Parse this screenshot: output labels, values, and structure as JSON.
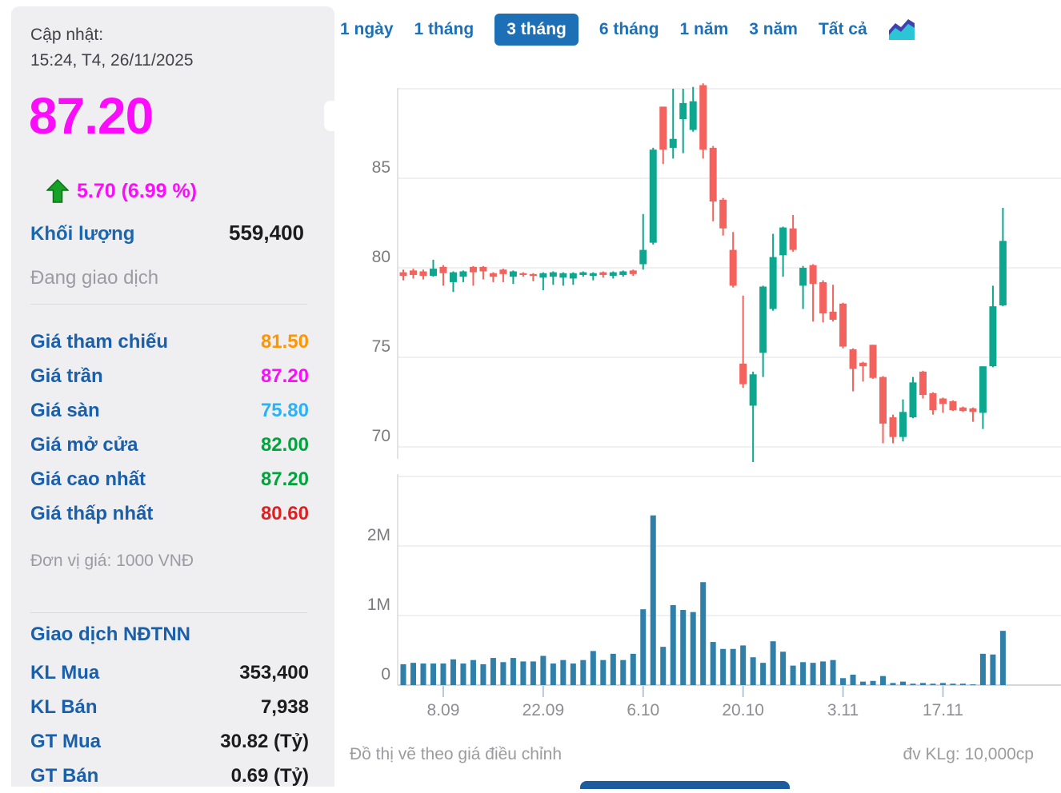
{
  "sidebar": {
    "updated_label": "Cập nhật:",
    "updated_value": "15:24, T4, 26/11/2025",
    "price": "87.20",
    "price_color": "#fb0dfb",
    "change": "5.70 (6.99 %)",
    "change_color": "#fb0dfb",
    "up_arrow_color": "#15a226",
    "volume_label": "Khối lượng",
    "volume_value": "559,400",
    "status": "Đang giao dịch",
    "price_rows": [
      {
        "label": "Giá tham chiếu",
        "value": "81.50",
        "color": "#ff9500"
      },
      {
        "label": "Giá trần",
        "value": "87.20",
        "color": "#fb0dfb"
      },
      {
        "label": "Giá sàn",
        "value": "75.80",
        "color": "#2bb1f8"
      },
      {
        "label": "Giá mở cửa",
        "value": "82.00",
        "color": "#00a43c"
      },
      {
        "label": "Giá cao nhất",
        "value": "87.20",
        "color": "#00a43c"
      },
      {
        "label": "Giá thấp nhất",
        "value": "80.60",
        "color": "#e02020"
      }
    ],
    "unit_note": "Đơn vị giá: 1000 VNĐ",
    "foreign": {
      "title": "Giao dịch NĐTNN",
      "rows": [
        {
          "label": "KL Mua",
          "value": "353,400"
        },
        {
          "label": "KL Bán",
          "value": "7,938"
        },
        {
          "label": "GT Mua",
          "value": "30.82 (Tỷ)"
        },
        {
          "label": "GT Bán",
          "value": "0.69 (Tỷ)"
        }
      ]
    }
  },
  "tabs": {
    "items": [
      "1 ngày",
      "1 tháng",
      "3 tháng",
      "6 tháng",
      "1 năm",
      "3 năm",
      "Tất cả"
    ],
    "active_label": "3 tháng",
    "active_bg": "#1d70b5",
    "icon_colors": {
      "area": "#2cc5d6",
      "band": "#4040af"
    }
  },
  "footer": {
    "left_note": "Đồ thị vẽ theo giá điều chỉnh",
    "right_note": "đv KLg: 10,000cp"
  },
  "chart_data": [
    {
      "type": "candlestick",
      "title": "",
      "ylim": [
        69.0,
        90.4
      ],
      "yticks": [
        85,
        80,
        75,
        70
      ],
      "grid_values": [
        90,
        85,
        80,
        75,
        70
      ],
      "up_color": "#0ca78e",
      "down_color": "#f4625d",
      "grid_color": "#ececef",
      "axis_line_color": "#d7d7db",
      "axis_text_color": "#7a7a80",
      "x_tick_labels": [
        "8.09",
        "22.09",
        "6.10",
        "20.10",
        "3.11",
        "17.11"
      ],
      "x_tick_indices": [
        4,
        14,
        24,
        34,
        44,
        54
      ],
      "x_tick_color": "#b6c7dd",
      "x_text_color": "#8e8e93",
      "candles_ohlc": [
        [
          79.75,
          79.9,
          79.3,
          79.55
        ],
        [
          79.85,
          79.95,
          79.4,
          79.6
        ],
        [
          79.8,
          79.9,
          79.35,
          79.55
        ],
        [
          79.55,
          80.45,
          79.5,
          79.95
        ],
        [
          80.05,
          80.15,
          79.0,
          79.7
        ],
        [
          79.2,
          79.8,
          78.65,
          79.75
        ],
        [
          79.5,
          79.85,
          79.2,
          79.8
        ],
        [
          80.05,
          80.1,
          79.0,
          79.75
        ],
        [
          80.05,
          80.1,
          79.35,
          79.8
        ],
        [
          79.7,
          79.75,
          79.2,
          79.5
        ],
        [
          79.9,
          79.95,
          79.2,
          79.65
        ],
        [
          79.5,
          79.85,
          79.1,
          79.8
        ],
        [
          79.7,
          79.75,
          79.5,
          79.6
        ],
        [
          79.65,
          79.7,
          79.25,
          79.55
        ],
        [
          79.45,
          79.75,
          78.75,
          79.7
        ],
        [
          79.5,
          79.8,
          79.05,
          79.75
        ],
        [
          79.45,
          79.75,
          79.0,
          79.7
        ],
        [
          79.4,
          79.75,
          79.05,
          79.7
        ],
        [
          79.6,
          79.8,
          79.5,
          79.75
        ],
        [
          79.55,
          79.75,
          79.3,
          79.7
        ],
        [
          79.75,
          79.8,
          79.45,
          79.6
        ],
        [
          79.55,
          79.8,
          79.4,
          79.75
        ],
        [
          79.6,
          79.85,
          79.5,
          79.8
        ],
        [
          79.85,
          79.9,
          79.55,
          79.65
        ],
        [
          80.2,
          83.0,
          79.9,
          81.0
        ],
        [
          81.4,
          86.7,
          81.3,
          86.6
        ],
        [
          89.0,
          89.0,
          85.8,
          86.6
        ],
        [
          86.7,
          90.0,
          86.1,
          87.2
        ],
        [
          88.3,
          90.0,
          86.4,
          89.2
        ],
        [
          87.7,
          90.1,
          87.6,
          89.3
        ],
        [
          90.2,
          90.3,
          86.1,
          86.6
        ],
        [
          86.7,
          86.8,
          82.6,
          83.7
        ],
        [
          83.8,
          83.9,
          81.8,
          82.2
        ],
        [
          81.0,
          82.0,
          78.9,
          79.0
        ],
        [
          74.65,
          78.45,
          73.3,
          73.5
        ],
        [
          72.3,
          74.2,
          69.15,
          74.05
        ],
        [
          75.25,
          79.0,
          73.9,
          78.95
        ],
        [
          77.7,
          81.9,
          77.6,
          80.6
        ],
        [
          80.7,
          82.3,
          79.5,
          82.25
        ],
        [
          82.2,
          82.95,
          80.9,
          81.0
        ],
        [
          79.0,
          80.1,
          77.7,
          80.0
        ],
        [
          80.15,
          80.2,
          77.0,
          79.1
        ],
        [
          79.2,
          79.3,
          76.95,
          77.45
        ],
        [
          77.55,
          79.05,
          77.0,
          77.1
        ],
        [
          78.0,
          78.05,
          75.5,
          75.6
        ],
        [
          75.45,
          75.5,
          73.1,
          74.35
        ],
        [
          74.7,
          74.75,
          73.65,
          74.5
        ],
        [
          75.7,
          75.7,
          73.8,
          73.85
        ],
        [
          73.9,
          73.95,
          70.2,
          71.3
        ],
        [
          71.65,
          71.8,
          70.2,
          70.55
        ],
        [
          70.55,
          72.65,
          70.3,
          71.95
        ],
        [
          71.65,
          73.9,
          71.6,
          73.6
        ],
        [
          74.2,
          74.25,
          72.7,
          72.9
        ],
        [
          73.0,
          73.05,
          71.8,
          72.05
        ],
        [
          72.7,
          72.75,
          71.9,
          72.4
        ],
        [
          72.55,
          72.6,
          72.0,
          72.05
        ],
        [
          72.2,
          72.25,
          71.95,
          72.0
        ],
        [
          72.15,
          72.2,
          71.4,
          71.95
        ],
        [
          71.9,
          74.5,
          71.0,
          74.5
        ],
        [
          74.5,
          79.0,
          74.45,
          77.85
        ],
        [
          77.9,
          83.35,
          77.85,
          81.5
        ]
      ]
    },
    {
      "type": "bar",
      "name": "volume",
      "ylim": [
        0,
        3.0
      ],
      "ytick_labels": [
        "2M",
        "1M",
        "0"
      ],
      "ytick_values": [
        2,
        1,
        0
      ],
      "grid_values": [
        3,
        2,
        1
      ],
      "bar_color": "#2f7fa9",
      "baseline_color": "#c9c9ce",
      "values_millions": [
        0.3,
        0.32,
        0.31,
        0.31,
        0.31,
        0.37,
        0.31,
        0.36,
        0.3,
        0.39,
        0.33,
        0.39,
        0.34,
        0.34,
        0.42,
        0.31,
        0.36,
        0.31,
        0.36,
        0.49,
        0.36,
        0.45,
        0.36,
        0.45,
        1.09,
        2.44,
        0.55,
        1.15,
        1.08,
        1.05,
        1.48,
        0.62,
        0.52,
        0.52,
        0.57,
        0.4,
        0.32,
        0.63,
        0.48,
        0.28,
        0.33,
        0.32,
        0.34,
        0.36,
        0.1,
        0.15,
        0.05,
        0.06,
        0.13,
        0.03,
        0.05,
        0.02,
        0.03,
        0.02,
        0.03,
        0.02,
        0.02,
        0.01,
        0.45,
        0.44,
        0.78
      ]
    }
  ]
}
